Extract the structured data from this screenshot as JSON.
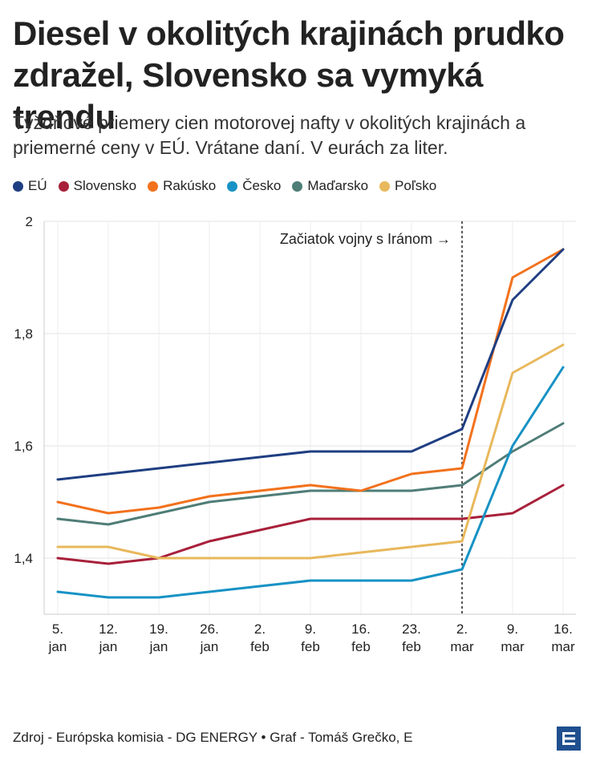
{
  "header": {
    "title_bold": "Diesel",
    "title_rest": " v okolitých krajinách prudko zdražel, Slovensko sa vymyká trendu",
    "subtitle": "Týždňové priemery cien motorovej nafty v okolitých krajinách a priemerné ceny v EÚ. Vrátane daní. V eurách za liter."
  },
  "legend": [
    {
      "name": "EÚ",
      "color": "#1f3e82"
    },
    {
      "name": "Slovensko",
      "color": "#a8203a"
    },
    {
      "name": "Rakúsko",
      "color": "#f2711c"
    },
    {
      "name": "Česko",
      "color": "#1692c4"
    },
    {
      "name": "Maďarsko",
      "color": "#4f7d77"
    },
    {
      "name": "Poľsko",
      "color": "#e8b85c"
    }
  ],
  "chart_data": {
    "type": "line",
    "title": "Diesel v okolitých krajinách prudko zdražel, Slovensko sa vymyká trendu",
    "xlabel": "",
    "ylabel": "",
    "ylim": [
      1.3,
      2.0
    ],
    "yticks": [
      "1,4",
      "1,6",
      "1,8",
      "2"
    ],
    "categories": [
      "5. jan",
      "12. jan",
      "19. jan",
      "26. jan",
      "2. feb",
      "9. feb",
      "16. feb",
      "23. feb",
      "2. mar",
      "9. mar",
      "16. mar"
    ],
    "category_lines": [
      [
        "5.",
        "jan"
      ],
      [
        "12.",
        "jan"
      ],
      [
        "19.",
        "jan"
      ],
      [
        "26.",
        "jan"
      ],
      [
        "2.",
        "feb"
      ],
      [
        "9.",
        "feb"
      ],
      [
        "16.",
        "feb"
      ],
      [
        "23.",
        "feb"
      ],
      [
        "2.",
        "mar"
      ],
      [
        "9.",
        "mar"
      ],
      [
        "16.",
        "mar"
      ]
    ],
    "annotation": {
      "label": "Začiatok vojny s Iránom →",
      "category_index": 8
    },
    "series": [
      {
        "name": "EÚ",
        "color": "#1f3e82",
        "values": [
          1.54,
          1.55,
          1.56,
          1.57,
          1.58,
          1.59,
          1.59,
          1.59,
          1.63,
          1.86,
          1.95
        ]
      },
      {
        "name": "Slovensko",
        "color": "#a8203a",
        "values": [
          1.4,
          1.39,
          1.4,
          1.43,
          1.45,
          1.47,
          1.47,
          1.47,
          1.47,
          1.48,
          1.53
        ]
      },
      {
        "name": "Rakúsko",
        "color": "#f2711c",
        "values": [
          1.5,
          1.48,
          1.49,
          1.51,
          1.52,
          1.53,
          1.52,
          1.55,
          1.56,
          1.9,
          1.95
        ]
      },
      {
        "name": "Česko",
        "color": "#1692c4",
        "values": [
          1.34,
          1.33,
          1.33,
          1.34,
          1.35,
          1.36,
          1.36,
          1.36,
          1.38,
          1.6,
          1.74
        ]
      },
      {
        "name": "Maďarsko",
        "color": "#4f7d77",
        "values": [
          1.47,
          1.46,
          1.48,
          1.5,
          1.51,
          1.52,
          1.52,
          1.52,
          1.53,
          1.59,
          1.64
        ]
      },
      {
        "name": "Poľsko",
        "color": "#e8b85c",
        "values": [
          1.42,
          1.42,
          1.4,
          1.4,
          1.4,
          1.4,
          1.41,
          1.42,
          1.43,
          1.73,
          1.78
        ]
      }
    ]
  },
  "footer": {
    "source": "Zdroj - Európska komisia - DG ENERGY • Graf - Tomáš Grečko, E"
  }
}
